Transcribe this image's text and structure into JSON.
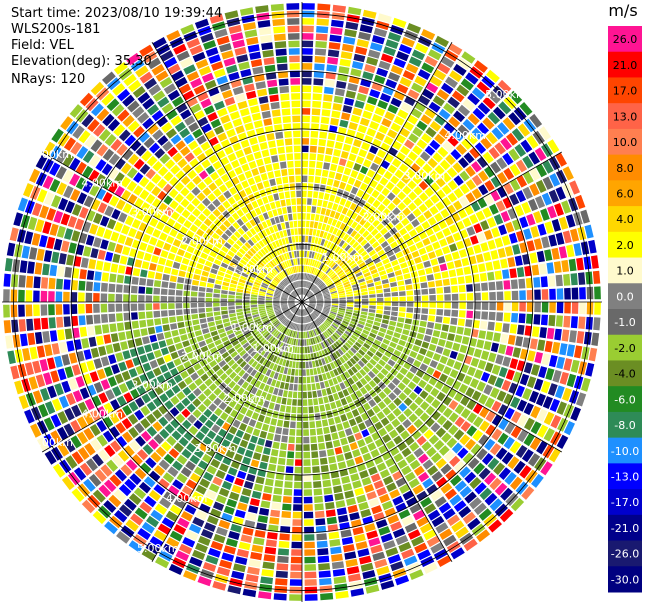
{
  "header": {
    "start_time": "Start time: 2023/08/10 19:39:44",
    "instrument": "WLS200s-181",
    "field": "Field: VEL",
    "elevation": "Elevation(deg): 35.30",
    "nrays": "NRays: 120"
  },
  "chart_data": {
    "type": "heatmap",
    "projection": "polar PPI",
    "field": "VEL",
    "units": "m/s",
    "n_rays": 120,
    "range_rings_km": [
      1.0,
      2.0,
      3.0,
      4.0,
      5.0
    ],
    "ring_labels": [
      "1.00km",
      "2.00km",
      "3.00km",
      "4.00km",
      "5.00km"
    ],
    "colorbar": {
      "title": "m/s",
      "ticks": [
        "26.0",
        "21.0",
        "17.0",
        "13.0",
        "10.0",
        "8.0",
        "6.0",
        "4.0",
        "2.0",
        "1.0",
        "0.0",
        "-1.0",
        "-2.0",
        "-4.0",
        "-6.0",
        "-8.0",
        "-10.0",
        "-13.0",
        "-17.0",
        "-21.0",
        "-26.0",
        "-30.0"
      ],
      "colors": [
        "#ff1493",
        "#ff0000",
        "#ff4500",
        "#ff6347",
        "#ff7f50",
        "#ff8c00",
        "#ffa500",
        "#ffd700",
        "#ffff00",
        "#fffacd",
        "#808080",
        "#696969",
        "#9acd32",
        "#6b8e23",
        "#228b22",
        "#2e8b57",
        "#1e90ff",
        "#0000ff",
        "#0000cd",
        "#00008b",
        "#191970",
        "#000080"
      ]
    },
    "grid": true
  }
}
